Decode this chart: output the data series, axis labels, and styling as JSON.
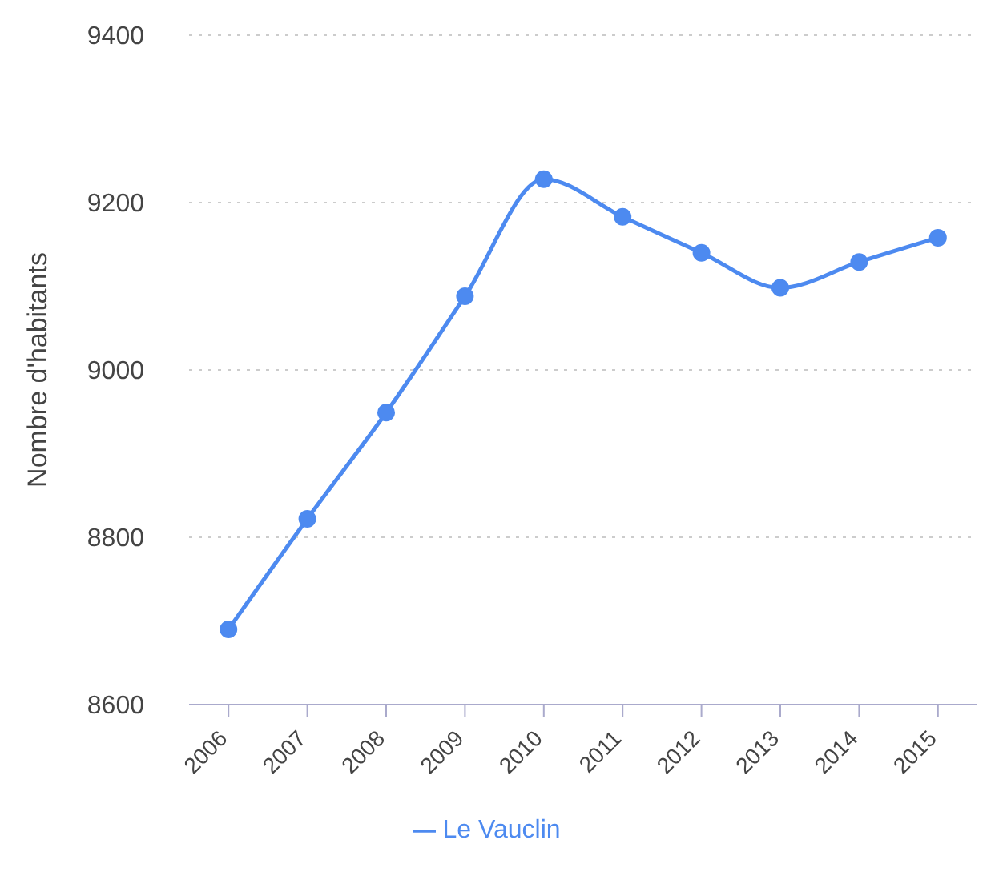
{
  "chart_data": {
    "type": "line",
    "ylabel": "Nombre d'habitants",
    "categories": [
      "2006",
      "2007",
      "2008",
      "2009",
      "2010",
      "2011",
      "2012",
      "2013",
      "2014",
      "2015"
    ],
    "series": [
      {
        "name": "Le Vauclin",
        "color": "#4d8af0",
        "values": [
          8690,
          8822,
          8949,
          9088,
          9228,
          9183,
          9140,
          9098,
          9129,
          9158
        ]
      }
    ],
    "ylim": [
      8600,
      9400
    ],
    "yticks": [
      8600,
      8800,
      9000,
      9200,
      9400
    ],
    "grid": "y",
    "legend": "bottom",
    "marker": "circle",
    "line_style": "solid"
  }
}
